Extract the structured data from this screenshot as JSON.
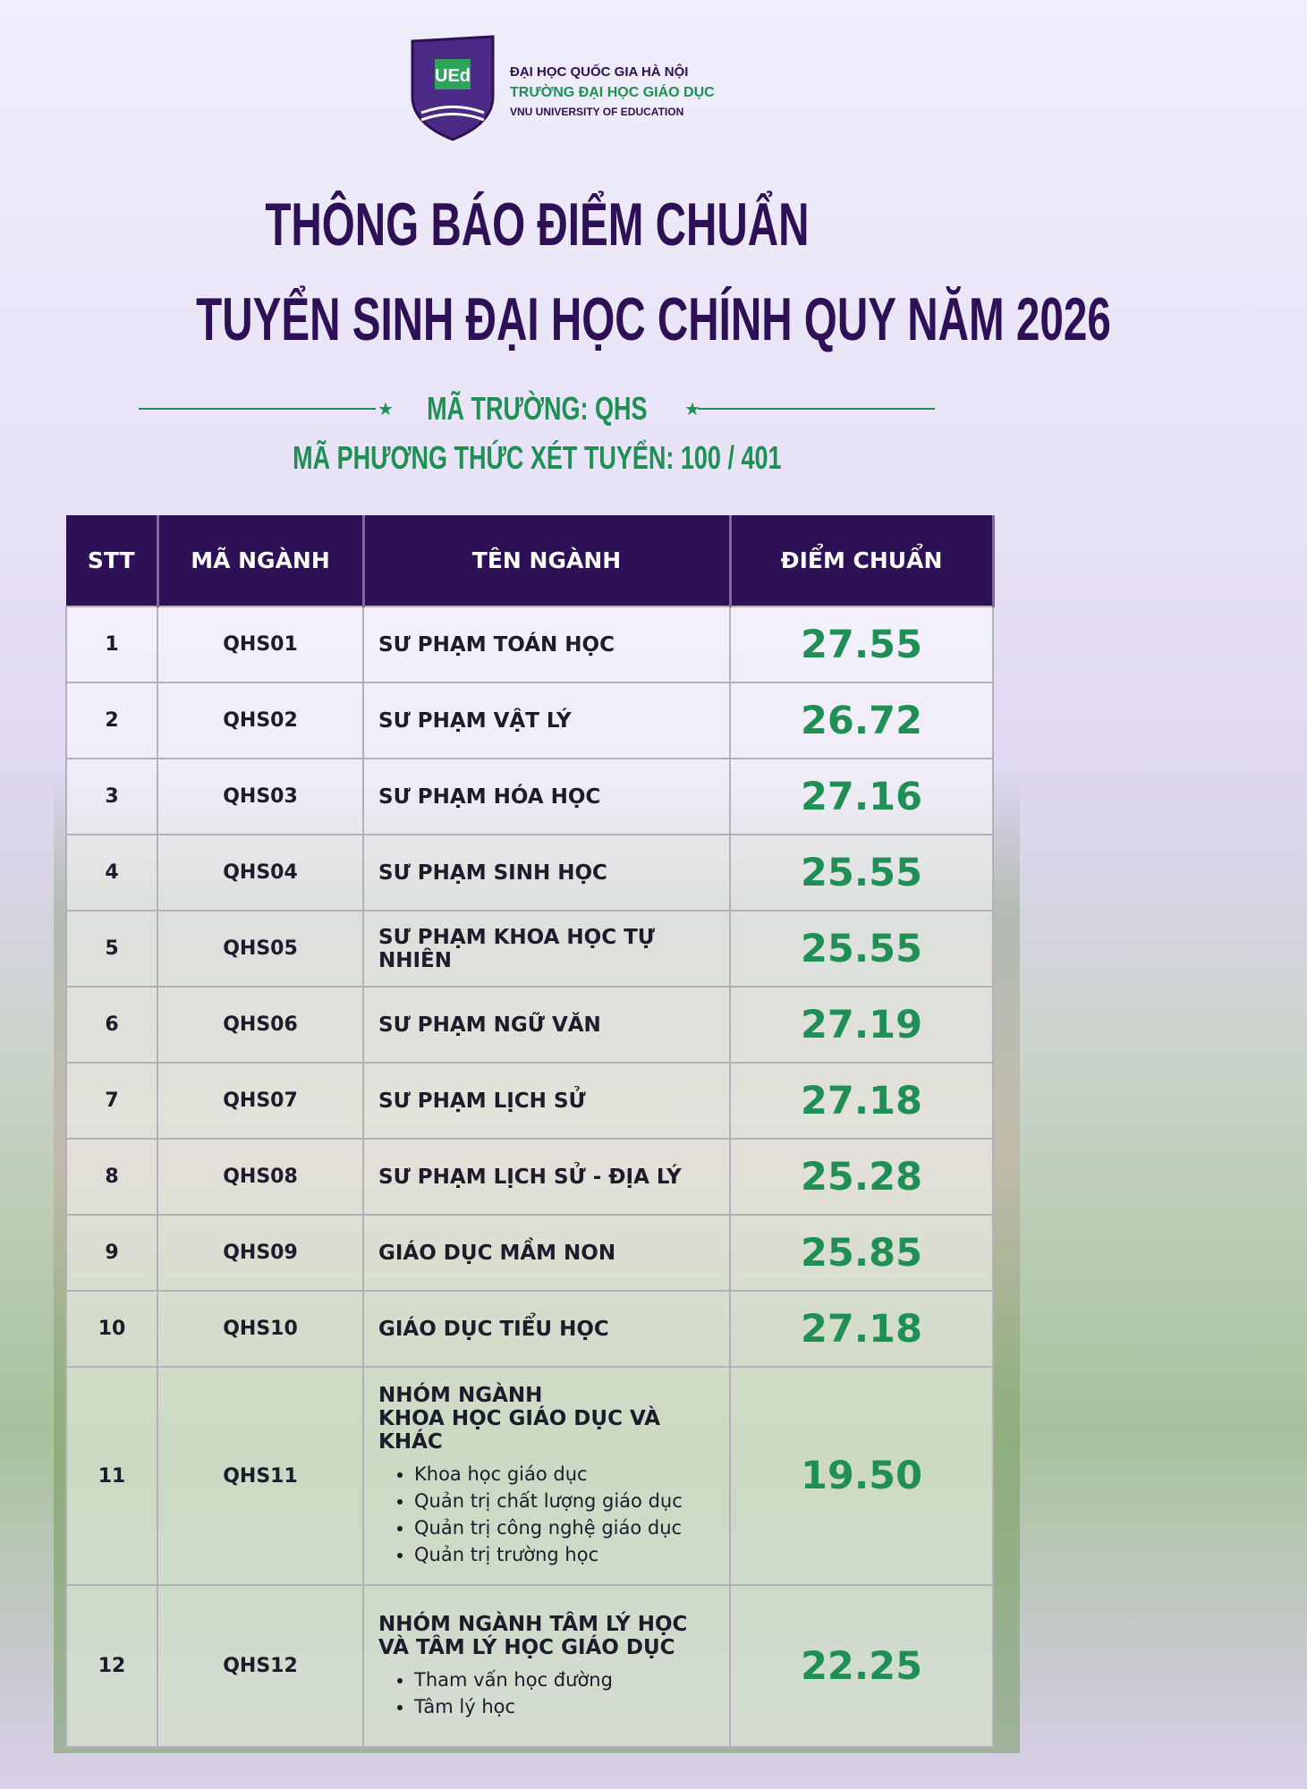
{
  "header": {
    "logo_text": "UEd",
    "university": "ĐẠI HỌC QUỐC GIA HÀ NỘI",
    "school": "TRƯỜNG ĐẠI HỌC GIÁO DỤC",
    "school_en": "VNU UNIVERSITY OF EDUCATION",
    "title_lines": [
      "THÔNG BÁO ĐIỂM CHUẨN",
      "TUYỂN SINH ĐẠI HỌC CHÍNH QUY NĂM 2026"
    ],
    "school_code": "MÃ TRƯỜNG: QHS",
    "method_code": "MÃ PHƯƠNG THỨC XÉT TUYỂN: 100 / 401"
  },
  "table": {
    "columns": [
      "STT",
      "MÃ NGÀNH",
      "TÊN NGÀNH",
      "ĐIỂM CHUẨN"
    ],
    "rows": [
      {
        "stt": 1,
        "code": "QHS01",
        "name": "SƯ PHẠM TOÁN HỌC",
        "score": "27.55"
      },
      {
        "stt": 2,
        "code": "QHS02",
        "name": "SƯ PHẠM VẬT LÝ",
        "score": "26.72"
      },
      {
        "stt": 3,
        "code": "QHS03",
        "name": "SƯ PHẠM HÓA HỌC",
        "score": "27.16"
      },
      {
        "stt": 4,
        "code": "QHS04",
        "name": "SƯ PHẠM SINH HỌC",
        "score": "25.55"
      },
      {
        "stt": 5,
        "code": "QHS05",
        "name": "SƯ PHẠM KHOA HỌC TỰ NHIÊN",
        "score": "25.55"
      },
      {
        "stt": 6,
        "code": "QHS06",
        "name": "SƯ PHẠM NGỮ VĂN",
        "score": "27.19"
      },
      {
        "stt": 7,
        "code": "QHS07",
        "name": "SƯ PHẠM LỊCH SỬ",
        "score": "27.18"
      },
      {
        "stt": 8,
        "code": "QHS08",
        "name": "SƯ PHẠM LỊCH SỬ - ĐỊA LÝ",
        "score": "25.28"
      },
      {
        "stt": 9,
        "code": "QHS09",
        "name": "GIÁO DỤC MẦM NON",
        "score": "25.85"
      },
      {
        "stt": 10,
        "code": "QHS10",
        "name": "GIÁO DỤC TIỂU HỌC",
        "score": "27.18"
      },
      {
        "stt": 11,
        "code": "QHS11",
        "name_lines": [
          "NHÓM NGÀNH",
          "KHOA HỌC GIÁO DỤC VÀ KHÁC"
        ],
        "items": [
          "Khoa học giáo dục",
          "Quản trị chất lượng giáo dục",
          "Quản trị công nghệ giáo dục",
          "Quản trị trường học"
        ],
        "score": "19.50"
      },
      {
        "stt": 12,
        "code": "QHS12",
        "name_lines": [
          "NHÓM NGÀNH TÂM LÝ HỌC",
          "VÀ TÂM LÝ HỌC GIÁO DỤC"
        ],
        "items": [
          "Tham vấn học đường",
          "Tâm lý học"
        ],
        "score": "22.25"
      }
    ]
  }
}
